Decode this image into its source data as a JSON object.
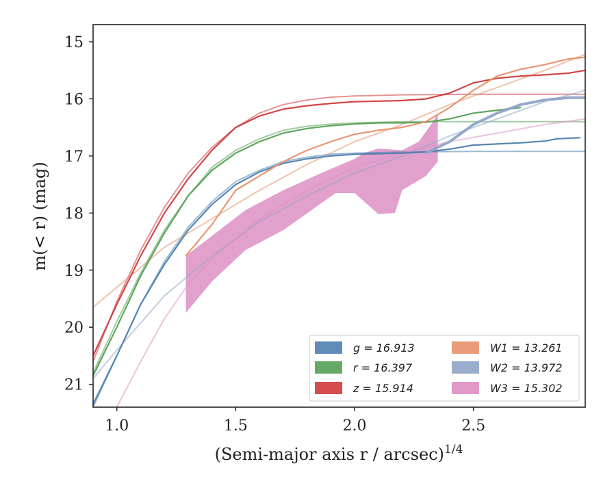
{
  "chart_data": {
    "type": "line",
    "xlabel": "(Semi-major axis r / arcsec)",
    "xlabel_sup": "1/4",
    "ylabel": "m(< r) (mag)",
    "xlim": [
      0.9,
      2.97
    ],
    "ylim": [
      21.4,
      14.7
    ],
    "xticks": [
      {
        "value": 1.0,
        "label": "1.0"
      },
      {
        "value": 1.5,
        "label": "1.5"
      },
      {
        "value": 2.0,
        "label": "2.0"
      },
      {
        "value": 2.5,
        "label": "2.5"
      }
    ],
    "yticks": [
      {
        "value": 15,
        "label": "15"
      },
      {
        "value": 16,
        "label": "16"
      },
      {
        "value": 17,
        "label": "17"
      },
      {
        "value": 18,
        "label": "18"
      },
      {
        "value": 19,
        "label": "19"
      },
      {
        "value": 20,
        "label": "20"
      },
      {
        "value": 21,
        "label": "21"
      }
    ],
    "grid": false,
    "legend_position": "lower-right",
    "series": [
      {
        "id": "g",
        "name": "g = 16.913",
        "color": "#4c7faf",
        "data": [
          [
            0.9,
            21.35
          ],
          [
            1.0,
            20.5
          ],
          [
            1.1,
            19.6
          ],
          [
            1.2,
            18.9
          ],
          [
            1.3,
            18.3
          ],
          [
            1.4,
            17.85
          ],
          [
            1.5,
            17.5
          ],
          [
            1.6,
            17.28
          ],
          [
            1.7,
            17.13
          ],
          [
            1.8,
            17.05
          ],
          [
            1.9,
            17.0
          ],
          [
            2.0,
            16.97
          ],
          [
            2.1,
            16.96
          ],
          [
            2.2,
            16.95
          ],
          [
            2.3,
            16.93
          ],
          [
            2.4,
            16.88
          ],
          [
            2.5,
            16.81
          ],
          [
            2.6,
            16.79
          ],
          [
            2.7,
            16.77
          ],
          [
            2.8,
            16.74
          ],
          [
            2.85,
            16.7
          ],
          [
            2.95,
            16.68
          ]
        ],
        "model": [
          [
            0.9,
            21.4
          ],
          [
            1.0,
            20.5
          ],
          [
            1.1,
            19.6
          ],
          [
            1.2,
            18.85
          ],
          [
            1.3,
            18.25
          ],
          [
            1.4,
            17.8
          ],
          [
            1.5,
            17.45
          ],
          [
            1.6,
            17.25
          ],
          [
            1.7,
            17.1
          ],
          [
            1.8,
            17.02
          ],
          [
            1.9,
            16.97
          ],
          [
            2.0,
            16.95
          ],
          [
            2.2,
            16.93
          ],
          [
            2.5,
            16.92
          ],
          [
            2.97,
            16.92
          ]
        ]
      },
      {
        "id": "r",
        "name": "r = 16.397",
        "color": "#55a055",
        "data": [
          [
            0.9,
            20.85
          ],
          [
            1.0,
            20.0
          ],
          [
            1.1,
            19.1
          ],
          [
            1.2,
            18.35
          ],
          [
            1.3,
            17.7
          ],
          [
            1.4,
            17.25
          ],
          [
            1.5,
            16.95
          ],
          [
            1.6,
            16.75
          ],
          [
            1.7,
            16.6
          ],
          [
            1.8,
            16.52
          ],
          [
            1.9,
            16.47
          ],
          [
            2.0,
            16.44
          ],
          [
            2.1,
            16.42
          ],
          [
            2.2,
            16.42
          ],
          [
            2.3,
            16.41
          ],
          [
            2.4,
            16.35
          ],
          [
            2.5,
            16.25
          ],
          [
            2.6,
            16.2
          ],
          [
            2.7,
            16.15
          ]
        ],
        "model": [
          [
            0.9,
            20.8
          ],
          [
            1.0,
            19.9
          ],
          [
            1.1,
            19.05
          ],
          [
            1.2,
            18.3
          ],
          [
            1.3,
            17.7
          ],
          [
            1.4,
            17.2
          ],
          [
            1.5,
            16.9
          ],
          [
            1.6,
            16.7
          ],
          [
            1.7,
            16.55
          ],
          [
            1.8,
            16.48
          ],
          [
            1.9,
            16.44
          ],
          [
            2.0,
            16.42
          ],
          [
            2.2,
            16.4
          ],
          [
            2.5,
            16.4
          ],
          [
            2.97,
            16.4
          ]
        ]
      },
      {
        "id": "z",
        "name": "z = 15.914",
        "color": "#d03b3b",
        "data": [
          [
            0.9,
            20.5
          ],
          [
            1.0,
            19.6
          ],
          [
            1.1,
            18.75
          ],
          [
            1.2,
            18.0
          ],
          [
            1.3,
            17.4
          ],
          [
            1.4,
            16.9
          ],
          [
            1.5,
            16.5
          ],
          [
            1.6,
            16.3
          ],
          [
            1.7,
            16.18
          ],
          [
            1.8,
            16.12
          ],
          [
            1.9,
            16.08
          ],
          [
            2.0,
            16.05
          ],
          [
            2.1,
            16.04
          ],
          [
            2.2,
            16.03
          ],
          [
            2.3,
            16.0
          ],
          [
            2.35,
            15.95
          ],
          [
            2.4,
            15.9
          ],
          [
            2.5,
            15.72
          ],
          [
            2.6,
            15.64
          ],
          [
            2.7,
            15.6
          ],
          [
            2.8,
            15.58
          ],
          [
            2.9,
            15.55
          ],
          [
            2.97,
            15.5
          ]
        ],
        "model": [
          [
            0.9,
            20.6
          ],
          [
            1.0,
            19.55
          ],
          [
            1.1,
            18.65
          ],
          [
            1.2,
            17.9
          ],
          [
            1.3,
            17.3
          ],
          [
            1.4,
            16.85
          ],
          [
            1.5,
            16.5
          ],
          [
            1.6,
            16.25
          ],
          [
            1.7,
            16.1
          ],
          [
            1.8,
            16.02
          ],
          [
            1.9,
            15.97
          ],
          [
            2.0,
            15.95
          ],
          [
            2.2,
            15.93
          ],
          [
            2.5,
            15.92
          ],
          [
            2.97,
            15.92
          ]
        ]
      },
      {
        "id": "W1",
        "name": "W1 = 13.261",
        "color": "#e8906a",
        "data": [
          [
            1.29,
            18.75
          ],
          [
            1.4,
            18.2
          ],
          [
            1.5,
            17.6
          ],
          [
            1.6,
            17.35
          ],
          [
            1.7,
            17.1
          ],
          [
            1.8,
            16.9
          ],
          [
            1.9,
            16.75
          ],
          [
            2.0,
            16.62
          ],
          [
            2.1,
            16.55
          ],
          [
            2.2,
            16.5
          ],
          [
            2.3,
            16.4
          ],
          [
            2.4,
            16.15
          ],
          [
            2.5,
            15.85
          ],
          [
            2.6,
            15.6
          ],
          [
            2.7,
            15.48
          ],
          [
            2.8,
            15.4
          ],
          [
            2.9,
            15.3
          ],
          [
            2.97,
            15.27
          ]
        ],
        "model": [
          [
            0.9,
            19.65
          ],
          [
            1.0,
            19.3
          ],
          [
            1.2,
            18.6
          ],
          [
            1.4,
            18.1
          ],
          [
            1.6,
            17.6
          ],
          [
            1.8,
            17.15
          ],
          [
            2.0,
            16.75
          ],
          [
            2.2,
            16.45
          ],
          [
            2.4,
            16.1
          ],
          [
            2.6,
            15.8
          ],
          [
            2.8,
            15.5
          ],
          [
            2.97,
            15.22
          ]
        ]
      },
      {
        "id": "W2",
        "name": "W2 = 13.972",
        "color": "#8fa4c8",
        "data": [
          [
            2.3,
            16.95
          ],
          [
            2.4,
            16.75
          ],
          [
            2.5,
            16.45
          ],
          [
            2.6,
            16.25
          ],
          [
            2.7,
            16.1
          ],
          [
            2.8,
            16.02
          ],
          [
            2.9,
            15.98
          ],
          [
            2.97,
            15.98
          ]
        ],
        "model": [
          [
            0.9,
            20.9
          ],
          [
            1.0,
            20.4
          ],
          [
            1.2,
            19.45
          ],
          [
            1.4,
            18.75
          ],
          [
            1.6,
            18.15
          ],
          [
            1.8,
            17.7
          ],
          [
            2.0,
            17.3
          ],
          [
            2.2,
            17.0
          ],
          [
            2.4,
            16.65
          ],
          [
            2.6,
            16.35
          ],
          [
            2.8,
            16.05
          ],
          [
            2.97,
            15.85
          ]
        ]
      },
      {
        "id": "W3",
        "name": "W3 = 15.302",
        "color": "#dd8fc4",
        "band_upper": [
          [
            1.29,
            18.75
          ],
          [
            1.4,
            18.4
          ],
          [
            1.54,
            17.95
          ],
          [
            1.7,
            17.6
          ],
          [
            1.86,
            17.3
          ],
          [
            2.0,
            17.05
          ],
          [
            2.04,
            16.95
          ],
          [
            2.1,
            16.87
          ],
          [
            2.2,
            16.9
          ],
          [
            2.27,
            16.75
          ],
          [
            2.33,
            16.4
          ],
          [
            2.35,
            16.25
          ]
        ],
        "band_lower": [
          [
            2.35,
            17.1
          ],
          [
            2.3,
            17.35
          ],
          [
            2.2,
            17.6
          ],
          [
            2.17,
            18.0
          ],
          [
            2.1,
            18.02
          ],
          [
            2.0,
            17.65
          ],
          [
            1.92,
            17.65
          ],
          [
            1.7,
            18.3
          ],
          [
            1.54,
            18.65
          ],
          [
            1.4,
            19.2
          ],
          [
            1.29,
            19.75
          ]
        ],
        "model": [
          [
            1.0,
            21.4
          ],
          [
            1.1,
            20.6
          ],
          [
            1.2,
            19.85
          ],
          [
            1.3,
            19.25
          ],
          [
            1.4,
            18.8
          ],
          [
            1.6,
            18.1
          ],
          [
            1.8,
            17.6
          ],
          [
            2.0,
            17.2
          ],
          [
            2.2,
            16.95
          ],
          [
            2.4,
            16.75
          ],
          [
            2.6,
            16.6
          ],
          [
            2.8,
            16.45
          ],
          [
            2.97,
            16.35
          ]
        ]
      }
    ],
    "legend": [
      {
        "ref": "g",
        "label": "g = 16.913"
      },
      {
        "ref": "W1",
        "label": "W1 = 13.261"
      },
      {
        "ref": "r",
        "label": "r = 16.397"
      },
      {
        "ref": "W2",
        "label": "W2 = 13.972"
      },
      {
        "ref": "z",
        "label": "z = 15.914"
      },
      {
        "ref": "W3",
        "label": "W3 = 15.302"
      }
    ]
  }
}
